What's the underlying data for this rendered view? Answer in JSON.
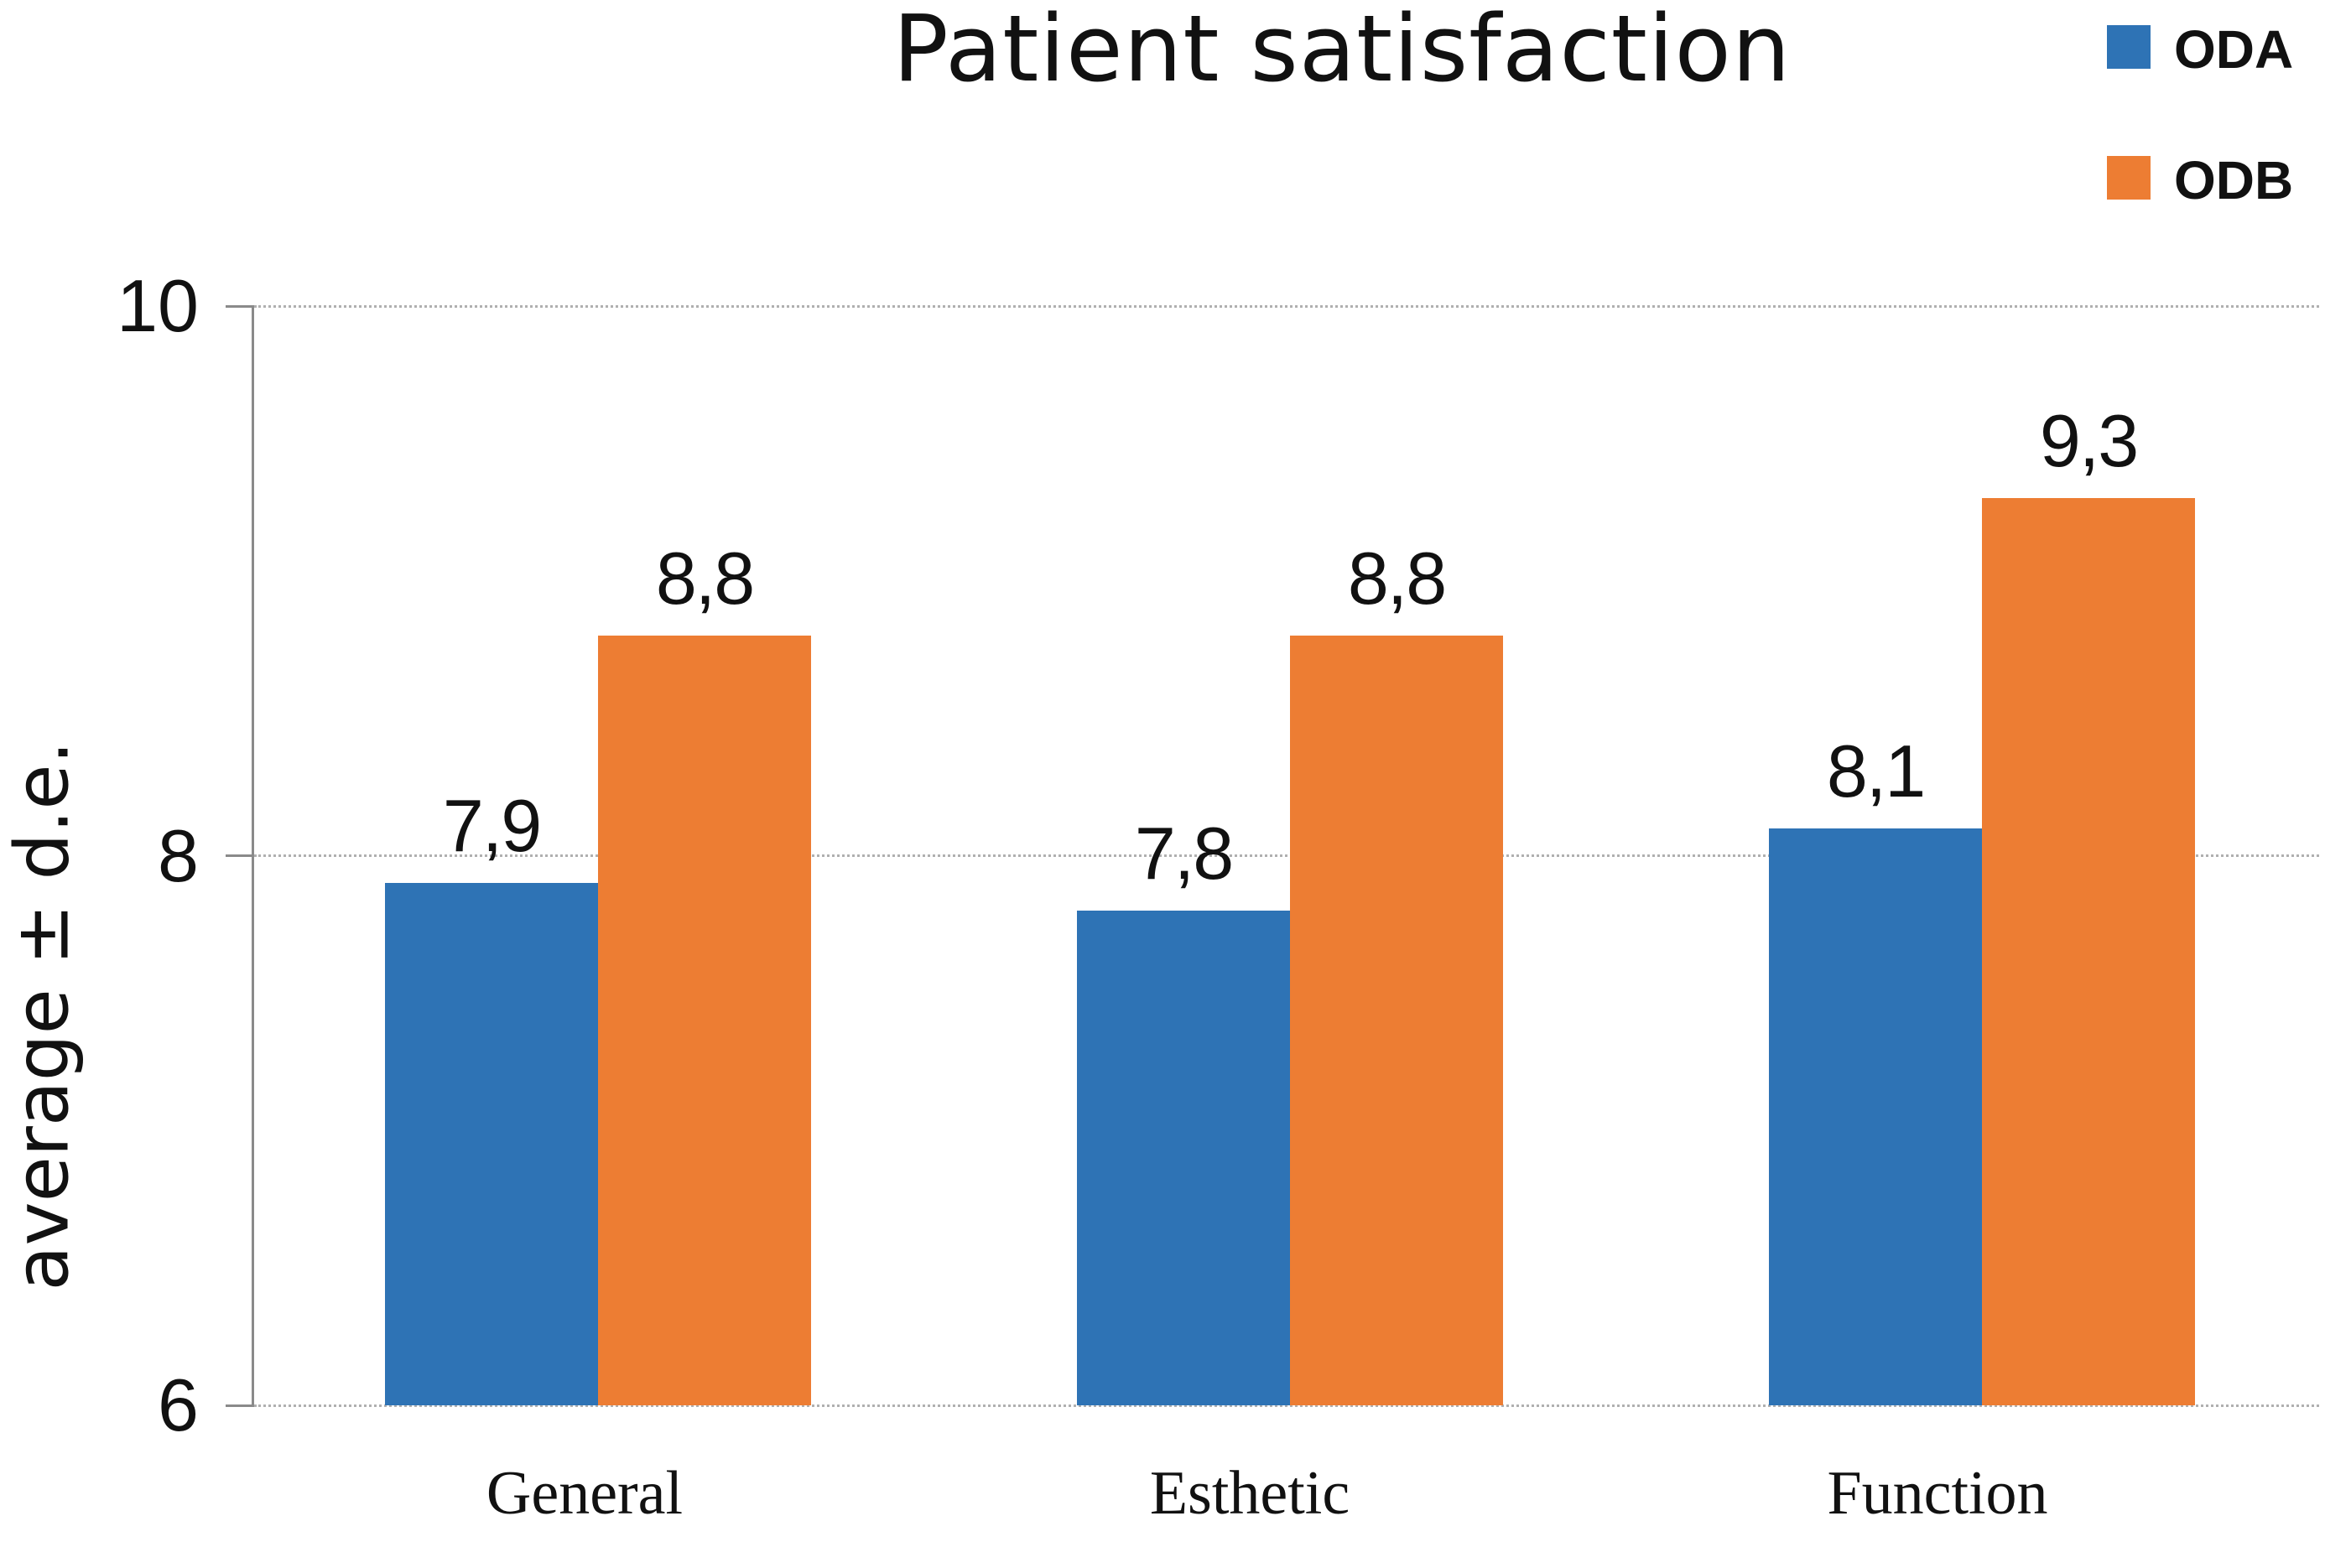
{
  "chart_data": {
    "type": "bar",
    "title": "Patient satisfaction",
    "ylabel": "average ± d.e.",
    "xlabel": "",
    "categories": [
      "General",
      "Esthetic",
      "Function"
    ],
    "series": [
      {
        "name": "ODA",
        "color": "#2e73b5",
        "values": [
          7.9,
          7.8,
          8.1
        ],
        "value_labels": [
          "7,9",
          "7,8",
          "8,1"
        ]
      },
      {
        "name": "ODB",
        "color": "#ed7d33",
        "values": [
          8.8,
          8.8,
          9.3
        ],
        "value_labels": [
          "8,8",
          "8,8",
          "9,3"
        ]
      }
    ],
    "ylim": [
      6,
      10
    ],
    "yticks": [
      10,
      8,
      6
    ],
    "ytick_labels": [
      "10",
      "8",
      "6"
    ],
    "grid": "horizontal-dotted",
    "legend_position": "top-right",
    "value_labels_shown": true,
    "decimal_separator": ","
  },
  "colors": {
    "axis": "#8a8a8a",
    "gridline": "#b0b0b0",
    "text": "#111111",
    "background": "#ffffff"
  }
}
